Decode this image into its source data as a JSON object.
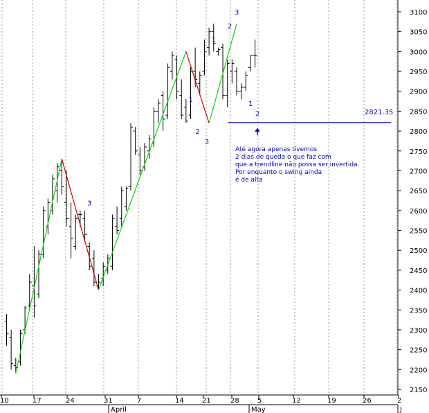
{
  "chart_data": {
    "type": "ohlc",
    "y_axis": {
      "min": 2100,
      "max": 3150,
      "position": "right",
      "ticks": [
        2150,
        2200,
        2250,
        2300,
        2350,
        2400,
        2450,
        2500,
        2550,
        2600,
        2650,
        2700,
        2750,
        2800,
        2850,
        2900,
        2950,
        3000,
        3050,
        3100
      ]
    },
    "x_ticks": [
      "10",
      "17",
      "24",
      "31",
      "7",
      "14",
      "21",
      "28",
      "5",
      "12",
      "19",
      "26",
      "2"
    ],
    "month_labels": [
      "April",
      "May",
      "J"
    ],
    "grid": "vertical dotted",
    "bars": [
      {
        "h": 2340,
        "l": 2260,
        "o": 2320,
        "c": 2290
      },
      {
        "h": 2300,
        "l": 2200,
        "o": 2280,
        "c": 2215
      },
      {
        "h": 2230,
        "l": 2190,
        "o": 2210,
        "c": 2205
      },
      {
        "h": 2300,
        "l": 2210,
        "o": 2220,
        "c": 2290
      },
      {
        "h": 2360,
        "l": 2290,
        "o": 2300,
        "c": 2355
      },
      {
        "h": 2440,
        "l": 2350,
        "o": 2360,
        "c": 2420
      },
      {
        "h": 2510,
        "l": 2330,
        "o": 2410,
        "c": 2360
      },
      {
        "h": 2500,
        "l": 2380,
        "o": 2390,
        "c": 2490
      },
      {
        "h": 2610,
        "l": 2480,
        "o": 2490,
        "c": 2600
      },
      {
        "h": 2630,
        "l": 2540,
        "o": 2560,
        "c": 2620
      },
      {
        "h": 2690,
        "l": 2590,
        "o": 2600,
        "c": 2680
      },
      {
        "h": 2720,
        "l": 2620,
        "o": 2650,
        "c": 2710
      },
      {
        "h": 2730,
        "l": 2640,
        "o": 2700,
        "c": 2660
      },
      {
        "h": 2700,
        "l": 2560,
        "o": 2620,
        "c": 2580
      },
      {
        "h": 2620,
        "l": 2480,
        "o": 2560,
        "c": 2530
      },
      {
        "h": 2590,
        "l": 2500,
        "o": 2510,
        "c": 2580
      },
      {
        "h": 2600,
        "l": 2560,
        "o": 2590,
        "c": 2590
      },
      {
        "h": 2600,
        "l": 2520,
        "o": 2580,
        "c": 2540
      },
      {
        "h": 2520,
        "l": 2450,
        "o": 2510,
        "c": 2460
      },
      {
        "h": 2500,
        "l": 2410,
        "o": 2480,
        "c": 2420
      },
      {
        "h": 2440,
        "l": 2400,
        "o": 2410,
        "c": 2420
      },
      {
        "h": 2470,
        "l": 2410,
        "o": 2430,
        "c": 2460
      },
      {
        "h": 2490,
        "l": 2440,
        "o": 2450,
        "c": 2480
      },
      {
        "h": 2590,
        "l": 2450,
        "o": 2460,
        "c": 2580
      },
      {
        "h": 2610,
        "l": 2540,
        "o": 2560,
        "c": 2550
      },
      {
        "h": 2660,
        "l": 2560,
        "o": 2580,
        "c": 2650
      },
      {
        "h": 2660,
        "l": 2600,
        "o": 2610,
        "c": 2655
      },
      {
        "h": 2820,
        "l": 2650,
        "o": 2660,
        "c": 2810
      },
      {
        "h": 2810,
        "l": 2740,
        "o": 2800,
        "c": 2750
      },
      {
        "h": 2760,
        "l": 2690,
        "o": 2740,
        "c": 2700
      },
      {
        "h": 2770,
        "l": 2700,
        "o": 2710,
        "c": 2760
      },
      {
        "h": 2790,
        "l": 2730,
        "o": 2750,
        "c": 2780
      },
      {
        "h": 2860,
        "l": 2760,
        "o": 2770,
        "c": 2850
      },
      {
        "h": 2880,
        "l": 2820,
        "o": 2850,
        "c": 2870
      },
      {
        "h": 2900,
        "l": 2800,
        "o": 2890,
        "c": 2830
      },
      {
        "h": 2970,
        "l": 2830,
        "o": 2840,
        "c": 2960
      },
      {
        "h": 3000,
        "l": 2930,
        "o": 2950,
        "c": 2990
      },
      {
        "h": 2990,
        "l": 2880,
        "o": 2980,
        "c": 2900
      },
      {
        "h": 2930,
        "l": 2830,
        "o": 2890,
        "c": 2840
      },
      {
        "h": 2880,
        "l": 2820,
        "o": 2860,
        "c": 2825
      },
      {
        "h": 2960,
        "l": 2830,
        "o": 2840,
        "c": 2950
      },
      {
        "h": 3010,
        "l": 2910,
        "o": 2950,
        "c": 2930
      },
      {
        "h": 2950,
        "l": 2890,
        "o": 2920,
        "c": 2940
      },
      {
        "h": 3030,
        "l": 2940,
        "o": 2950,
        "c": 3000
      },
      {
        "h": 3060,
        "l": 2990,
        "o": 3010,
        "c": 3050
      },
      {
        "h": 3070,
        "l": 3000,
        "o": 3050,
        "c": 3020
      },
      {
        "h": 3010,
        "l": 2990,
        "o": 3000,
        "c": 3005
      },
      {
        "h": 3020,
        "l": 2880,
        "o": 3010,
        "c": 2890
      },
      {
        "h": 2980,
        "l": 2860,
        "o": 2890,
        "c": 2970
      },
      {
        "h": 2980,
        "l": 2920,
        "o": 2950,
        "c": 2970
      },
      {
        "h": 2960,
        "l": 2890,
        "o": 2950,
        "c": 2900
      },
      {
        "h": 2920,
        "l": 2880,
        "o": 2900,
        "c": 2910
      },
      {
        "h": 2950,
        "l": 2900,
        "o": 2910,
        "c": 2940
      },
      {
        "h": 2990,
        "l": 2950,
        "o": 2960,
        "c": 2990
      },
      {
        "h": 3030,
        "l": 2960,
        "o": 2990,
        "c": 2990
      }
    ],
    "trendlines": [
      {
        "color": "#00dd00",
        "points": [
          [
            2,
            2190
          ],
          [
            12,
            2730
          ]
        ]
      },
      {
        "color": "#cc0000",
        "points": [
          [
            12,
            2730
          ],
          [
            20,
            2400
          ]
        ]
      },
      {
        "color": "#00dd00",
        "points": [
          [
            20,
            2400
          ],
          [
            39,
            3000
          ]
        ]
      },
      {
        "color": "#cc0000",
        "points": [
          [
            39,
            3000
          ],
          [
            44,
            2820
          ]
        ]
      },
      {
        "color": "#00dd00",
        "points": [
          [
            44,
            2820
          ],
          [
            50,
            3070
          ]
        ]
      }
    ],
    "level_line": {
      "value": 2821.35,
      "label": "2821.35",
      "color": "#0000cc"
    },
    "wave_labels": [
      {
        "text": "3",
        "bar": 18,
        "price": 2620
      },
      {
        "text": "1",
        "bar": 40,
        "price": 2880
      },
      {
        "text": "2",
        "bar": 41.5,
        "price": 2800
      },
      {
        "text": "3",
        "bar": 43.5,
        "price": 2775
      },
      {
        "text": "1",
        "bar": 45,
        "price": 3030
      },
      {
        "text": "2",
        "bar": 48.5,
        "price": 3065
      },
      {
        "text": "3",
        "bar": 50,
        "price": 3100
      },
      {
        "text": "1",
        "bar": 53,
        "price": 2870
      },
      {
        "text": "2",
        "bar": 54.5,
        "price": 2845
      }
    ],
    "arrow": {
      "bar": 54.5,
      "price": 2790
    },
    "note_lines": [
      "Até agora apenas tivemos",
      "2 dias de queda o que faz com",
      "que a trendline não possa ser invertida.",
      "Por enquanto o swing ainda",
      "é de alta"
    ]
  }
}
